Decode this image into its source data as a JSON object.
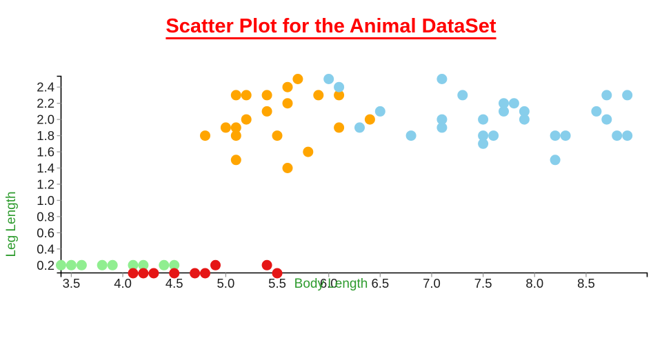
{
  "title": "Scatter Plot for the Animal DataSet",
  "chart_data": {
    "type": "scatter",
    "title": "Scatter Plot for the Animal DataSet",
    "xlabel": "Body Length",
    "ylabel": "Leg Length",
    "x_ticks": [
      3.5,
      4.0,
      4.5,
      5.0,
      5.5,
      6.0,
      6.5,
      7.0,
      7.5,
      8.0,
      8.5
    ],
    "y_ticks": [
      0.2,
      0.4,
      0.6,
      0.8,
      1.0,
      1.2,
      1.4,
      1.6,
      1.8,
      2.0,
      2.2,
      2.4
    ],
    "xlim": [
      3.4,
      9.1
    ],
    "ylim": [
      0.1,
      2.55
    ],
    "grid": false,
    "legend": "none",
    "marker_diameter_px": 15,
    "colors": {
      "title": "#FF0000",
      "axis_label": "#2D9B2D",
      "tick_label": "#1C1C1C",
      "tick_mark": "#999999",
      "spine": "#000000",
      "background": "#FFFFFF"
    },
    "series": [
      {
        "name": "light-green-cluster",
        "color": "#90EE90",
        "points": [
          [
            3.4,
            0.2
          ],
          [
            3.5,
            0.2
          ],
          [
            3.6,
            0.2
          ],
          [
            3.8,
            0.2
          ],
          [
            3.9,
            0.2
          ],
          [
            4.1,
            0.2
          ],
          [
            4.2,
            0.2
          ],
          [
            4.4,
            0.2
          ],
          [
            4.5,
            0.2
          ]
        ]
      },
      {
        "name": "red-cluster",
        "color": "#E51616",
        "points": [
          [
            4.1,
            0.1
          ],
          [
            4.2,
            0.1
          ],
          [
            4.3,
            0.1
          ],
          [
            4.5,
            0.1
          ],
          [
            4.7,
            0.1
          ],
          [
            4.8,
            0.1
          ],
          [
            4.9,
            0.2
          ],
          [
            5.4,
            0.2
          ],
          [
            5.5,
            0.1
          ]
        ]
      },
      {
        "name": "orange-cluster",
        "color": "#FFA500",
        "points": [
          [
            4.8,
            1.8
          ],
          [
            5.0,
            1.9
          ],
          [
            5.1,
            1.5
          ],
          [
            5.1,
            1.8
          ],
          [
            5.1,
            1.9
          ],
          [
            5.1,
            2.3
          ],
          [
            5.2,
            2.0
          ],
          [
            5.2,
            2.3
          ],
          [
            5.4,
            2.1
          ],
          [
            5.4,
            2.3
          ],
          [
            5.5,
            1.8
          ],
          [
            5.6,
            1.4
          ],
          [
            5.6,
            2.2
          ],
          [
            5.6,
            2.4
          ],
          [
            5.7,
            2.5
          ],
          [
            5.8,
            1.6
          ],
          [
            5.9,
            2.3
          ],
          [
            6.1,
            1.9
          ],
          [
            6.1,
            2.3
          ],
          [
            6.4,
            2.0
          ]
        ]
      },
      {
        "name": "sky-blue-cluster",
        "color": "#87CEEB",
        "points": [
          [
            6.0,
            2.5
          ],
          [
            6.1,
            2.4
          ],
          [
            6.3,
            1.9
          ],
          [
            6.5,
            2.1
          ],
          [
            6.8,
            1.8
          ],
          [
            7.1,
            1.9
          ],
          [
            7.1,
            2.0
          ],
          [
            7.1,
            2.5
          ],
          [
            7.3,
            2.3
          ],
          [
            7.5,
            1.7
          ],
          [
            7.5,
            1.8
          ],
          [
            7.5,
            2.0
          ],
          [
            7.6,
            1.8
          ],
          [
            7.7,
            2.1
          ],
          [
            7.7,
            2.2
          ],
          [
            7.8,
            2.2
          ],
          [
            7.9,
            2.0
          ],
          [
            7.9,
            2.1
          ],
          [
            8.2,
            1.5
          ],
          [
            8.2,
            1.8
          ],
          [
            8.3,
            1.8
          ],
          [
            8.6,
            2.1
          ],
          [
            8.7,
            2.0
          ],
          [
            8.7,
            2.3
          ],
          [
            8.8,
            1.8
          ],
          [
            8.9,
            1.8
          ],
          [
            8.9,
            2.3
          ]
        ]
      }
    ]
  }
}
